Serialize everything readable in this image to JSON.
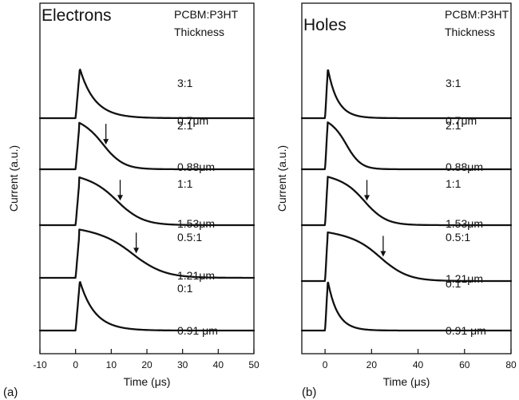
{
  "chart_data": [
    {
      "type": "line",
      "panel_label": "(a)",
      "title": "Electrons",
      "header_lines": [
        "PCBM:P3HT",
        "Thickness"
      ],
      "xlabel": "Time (μs)",
      "ylabel": "Current (a.u.)",
      "xlim": [
        -10,
        50
      ],
      "x_ticks": [
        -10,
        0,
        10,
        20,
        30,
        40,
        50
      ],
      "grid": false,
      "traces": [
        {
          "ratio": "3:1",
          "thickness": "0.7μm",
          "shape": "spike",
          "transit_time": null
        },
        {
          "ratio": "2:1",
          "thickness": "0.88μm",
          "shape": "plateau",
          "transit_time": 8.5
        },
        {
          "ratio": "1:1",
          "thickness": "1.53μm",
          "shape": "plateau",
          "transit_time": 12.5
        },
        {
          "ratio": "0.5:1",
          "thickness": "1.21μm",
          "shape": "plateau",
          "transit_time": 17
        },
        {
          "ratio": "0:1",
          "thickness": "0.91 μm",
          "shape": "spike",
          "transit_time": null
        }
      ]
    },
    {
      "type": "line",
      "panel_label": "(b)",
      "title": "Holes",
      "header_lines": [
        "PCBM:P3HT",
        "Thickness"
      ],
      "xlabel": "Time (μs)",
      "ylabel": "Current (a.u.)",
      "xlim": [
        -10,
        80
      ],
      "x_ticks": [
        0,
        20,
        40,
        60,
        80
      ],
      "grid": false,
      "traces": [
        {
          "ratio": "3:1",
          "thickness": "0.7μm",
          "shape": "spike",
          "transit_time": null
        },
        {
          "ratio": "2:1",
          "thickness": "0.88μm",
          "shape": "plateau",
          "transit_time": null
        },
        {
          "ratio": "1:1",
          "thickness": "1.53μm",
          "shape": "plateau",
          "transit_time": 18
        },
        {
          "ratio": "0.5:1",
          "thickness": "1.21μm",
          "shape": "plateau",
          "transit_time": 25
        },
        {
          "ratio": "0:1",
          "thickness": "0.91 μm",
          "shape": "spike",
          "transit_time": null
        }
      ]
    }
  ]
}
